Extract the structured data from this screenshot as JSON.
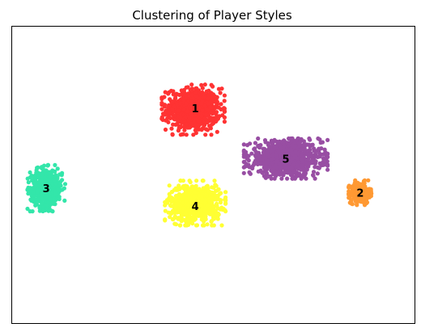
{
  "chart_data": {
    "type": "scatter",
    "title": "Clustering of Player Styles",
    "xlabel": "",
    "ylabel": "",
    "xlim": [
      0,
      100
    ],
    "ylim": [
      0,
      100
    ],
    "grid": false,
    "axis_ticks": false,
    "clusters": [
      {
        "label": "1",
        "color": "#ff3333",
        "center": [
          45.0,
          72.0
        ],
        "label_pos": [
          45.5,
          72.5
        ],
        "spread": [
          6.0,
          6.5
        ],
        "count": 700
      },
      {
        "label": "2",
        "color": "#ff9933",
        "center": [
          86.5,
          44.0
        ],
        "label_pos": [
          86.5,
          44.0
        ],
        "spread": [
          2.2,
          3.2
        ],
        "count": 300
      },
      {
        "label": "3",
        "color": "#33e6aa",
        "center": [
          8.5,
          45.5
        ],
        "label_pos": [
          8.5,
          45.5
        ],
        "spread": [
          3.6,
          6.0
        ],
        "count": 450
      },
      {
        "label": "4",
        "color": "#ffff33",
        "center": [
          45.5,
          40.5
        ],
        "label_pos": [
          45.5,
          39.5
        ],
        "spread": [
          5.8,
          5.8
        ],
        "count": 700
      },
      {
        "label": "5",
        "color": "#984ea3",
        "center": [
          68.0,
          55.5
        ],
        "label_pos": [
          68.0,
          55.5
        ],
        "spread": [
          8.0,
          5.2
        ],
        "count": 900
      }
    ]
  }
}
